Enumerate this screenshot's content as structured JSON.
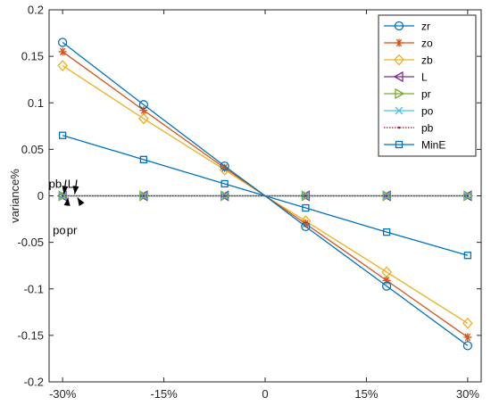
{
  "chart_data": {
    "type": "line",
    "title": "",
    "xlabel": "",
    "ylabel": "variance%",
    "x": [
      -30,
      -18,
      -6,
      0,
      6,
      18,
      30
    ],
    "xlim": [
      -32,
      32
    ],
    "ylim": [
      -0.2,
      0.2
    ],
    "xticks": [
      -30,
      -15,
      0,
      15,
      30
    ],
    "xtick_labels": [
      "-30%",
      "-15%",
      "0",
      "15%",
      "30%"
    ],
    "yticks": [
      -0.2,
      -0.15,
      -0.1,
      -0.05,
      0,
      0.05,
      0.1,
      0.15,
      0.2
    ],
    "ytick_labels": [
      "-0.2",
      "-0.15",
      "-0.1",
      "-0.05",
      "0",
      "0.05",
      "0.1",
      "0.15",
      "0.2"
    ],
    "grid": false,
    "legend_position": "top-right",
    "series": [
      {
        "name": "zr",
        "color": "#0072BD",
        "marker": "circle",
        "values": [
          0.165,
          0.098,
          0.032,
          0,
          -0.033,
          -0.097,
          -0.161
        ]
      },
      {
        "name": "zo",
        "color": "#D95319",
        "marker": "asterisk",
        "values": [
          0.155,
          0.092,
          0.03,
          0,
          -0.03,
          -0.091,
          -0.152
        ]
      },
      {
        "name": "zb",
        "color": "#EDB120",
        "marker": "diamond",
        "values": [
          0.14,
          0.083,
          0.028,
          0,
          -0.027,
          -0.082,
          -0.137
        ]
      },
      {
        "name": "L",
        "color": "#7E2F8E",
        "marker": "triangle-left",
        "values": [
          0,
          0,
          0,
          0,
          0,
          0,
          0
        ]
      },
      {
        "name": "pr",
        "color": "#77AC30",
        "marker": "triangle-right",
        "values": [
          0,
          0,
          0,
          0,
          0,
          0,
          0
        ]
      },
      {
        "name": "po",
        "color": "#4DBEEE",
        "marker": "x",
        "values": [
          0,
          0,
          0,
          0,
          0,
          0,
          0
        ]
      },
      {
        "name": "pb",
        "color": "#A2142F",
        "marker": "dot",
        "values": [
          0,
          0,
          0,
          0,
          0,
          0,
          0
        ]
      },
      {
        "name": "MinE",
        "color": "#0072BD",
        "marker": "square",
        "values": [
          0.065,
          0.039,
          0.013,
          0,
          -0.013,
          -0.039,
          -0.064
        ]
      }
    ],
    "annotations": [
      {
        "text": "pb",
        "points_to_x": -29.8,
        "points_to_y": 0
      },
      {
        "text": "L",
        "points_to_x": -28.2,
        "points_to_y": 0
      },
      {
        "text": "po",
        "points_to_x": -29.2,
        "points_to_y": 0
      },
      {
        "text": "pr",
        "points_to_x": -27.8,
        "points_to_y": 0
      }
    ]
  }
}
